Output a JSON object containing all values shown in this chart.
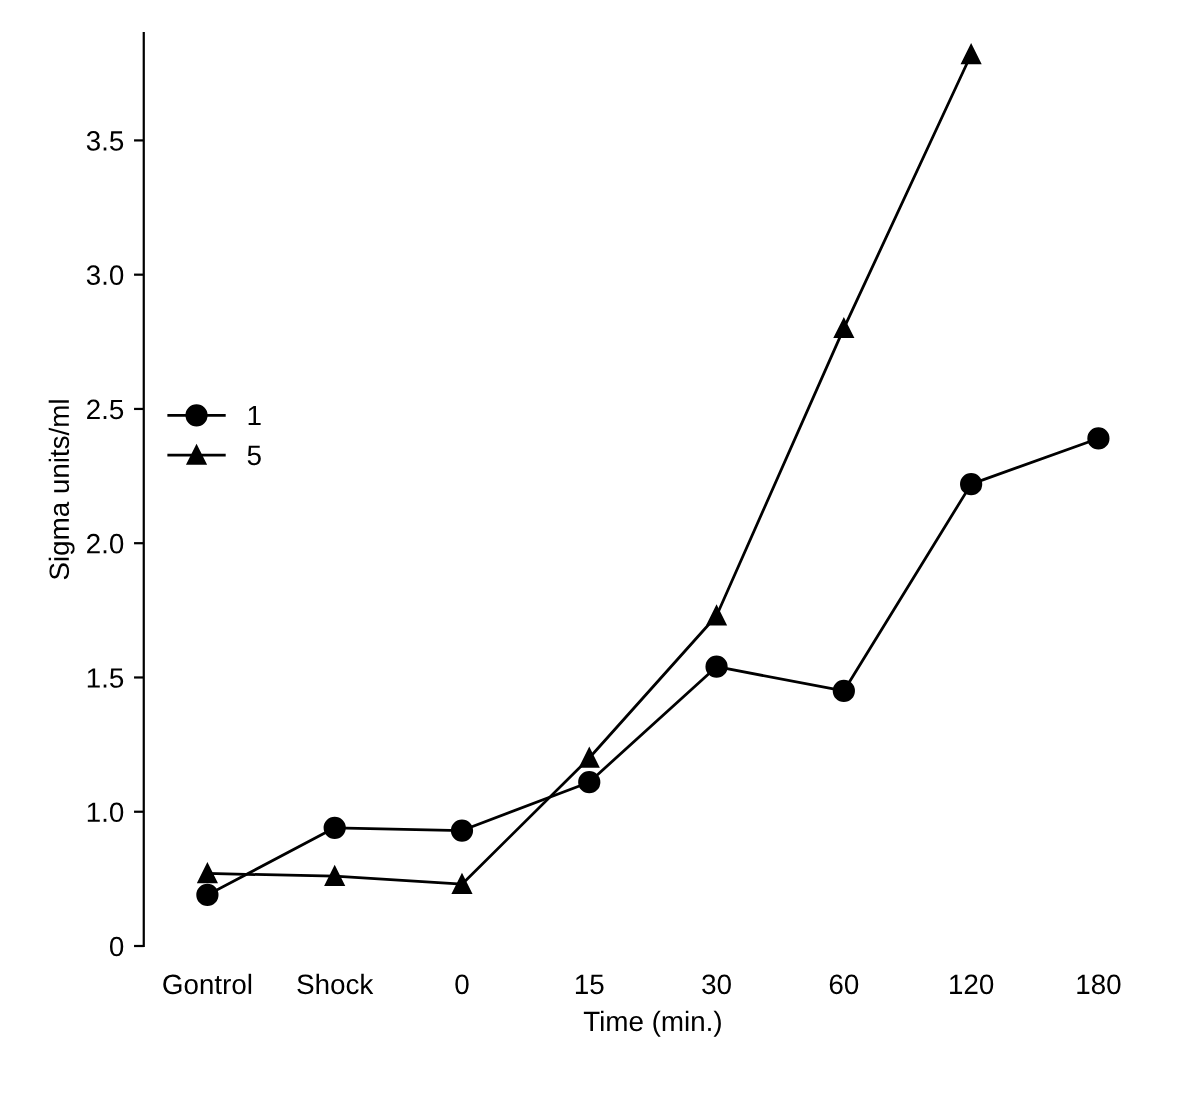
{
  "chart_data": {
    "type": "line",
    "xlabel": "Time (min.)",
    "ylabel": "Sigma units/ml",
    "categories": [
      "Gontrol",
      "Shock",
      "0",
      "15",
      "30",
      "60",
      "120",
      "180"
    ],
    "ylim": [
      0.5,
      3.9
    ],
    "yticks": [
      {
        "value": 0.5,
        "label": "0"
      },
      {
        "value": 1,
        "label": "1.0"
      },
      1.5,
      {
        "value": 2,
        "label": "2.0"
      },
      2.5,
      {
        "value": 3,
        "label": "3.0"
      },
      3.5
    ],
    "series": [
      {
        "name": "1",
        "color": "#000000",
        "marker": "circle",
        "values": [
          0.69,
          0.94,
          0.93,
          1.11,
          1.54,
          1.45,
          2.22,
          2.39
        ]
      },
      {
        "name": "5",
        "color": "#000000",
        "marker": "triangle",
        "values": [
          0.77,
          0.76,
          0.73,
          1.2,
          1.73,
          2.8,
          3.82,
          null
        ]
      }
    ],
    "legend": "upper left",
    "grid": false
  }
}
